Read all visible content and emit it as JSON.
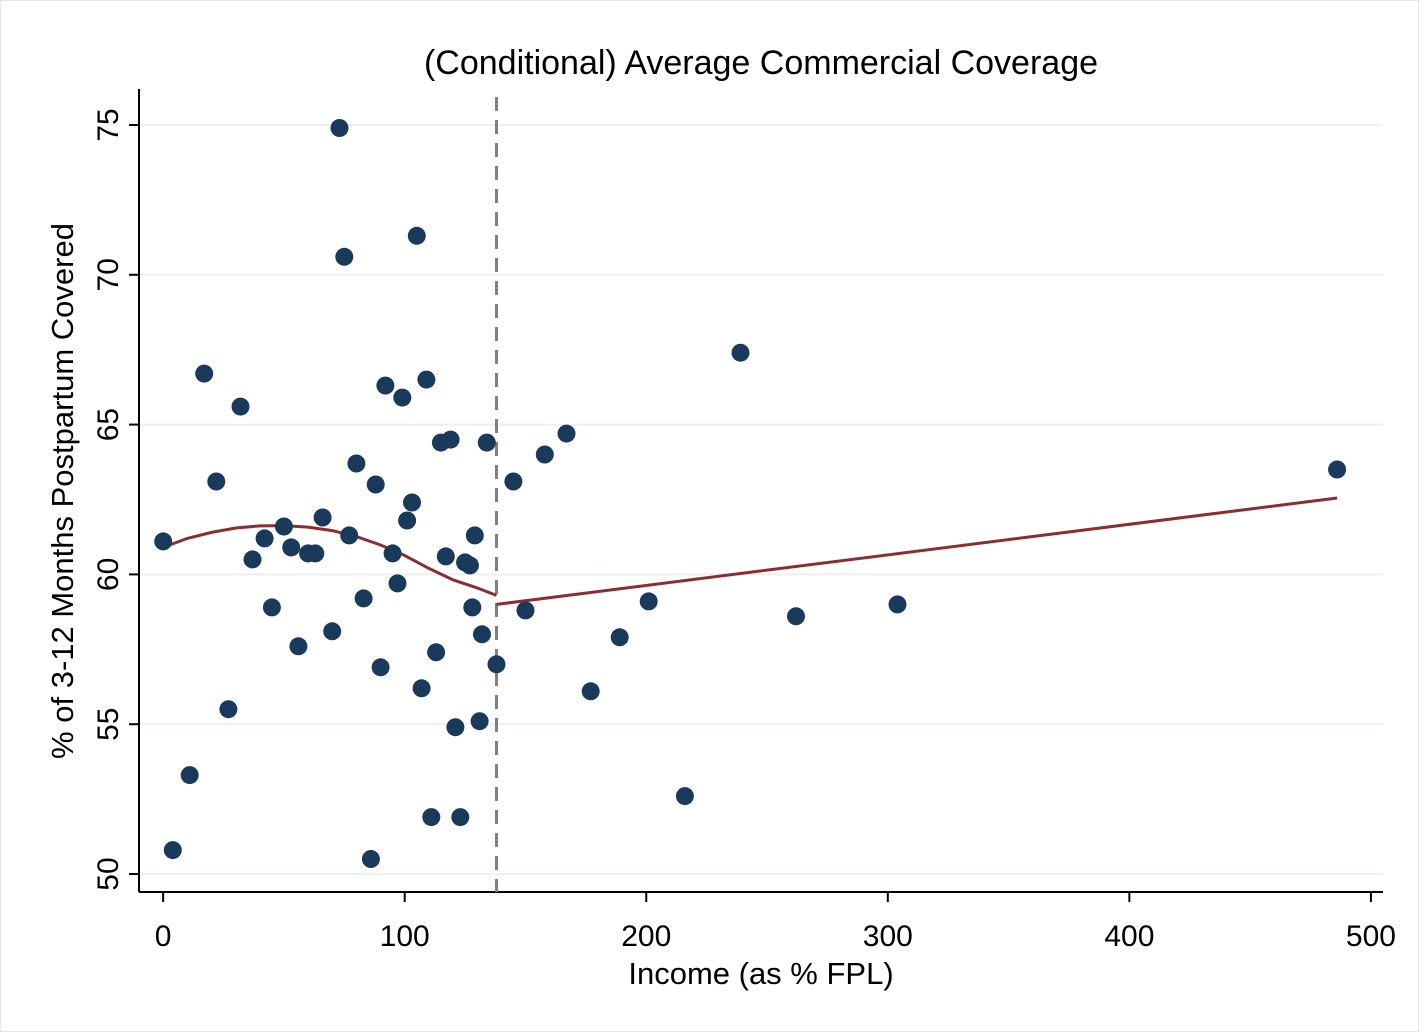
{
  "chart_data": {
    "type": "scatter",
    "title": "(Conditional) Average Commercial Coverage",
    "xlabel": "Income (as % FPL)",
    "ylabel": "% of 3-12 Months Postpartum Covered",
    "xlim": [
      -10,
      505
    ],
    "ylim": [
      49.4,
      76.2
    ],
    "x_ticks": [
      0,
      100,
      200,
      300,
      400,
      500
    ],
    "y_ticks": [
      50,
      55,
      60,
      65,
      70,
      75
    ],
    "grid": true,
    "legend": "none",
    "cutoff_x": 138,
    "colors": {
      "points": "#1a3a5c",
      "fit": "#8b2e33",
      "grid": "#eaf0f3",
      "cutoff": "#808080"
    },
    "series": [
      {
        "type": "scatter",
        "points": [
          [
            0,
            61.1
          ],
          [
            4,
            50.8
          ],
          [
            11,
            53.3
          ],
          [
            17,
            66.7
          ],
          [
            22,
            63.1
          ],
          [
            27,
            55.5
          ],
          [
            32,
            65.6
          ],
          [
            37,
            60.5
          ],
          [
            42,
            61.2
          ],
          [
            45,
            58.9
          ],
          [
            50,
            61.6
          ],
          [
            53,
            60.9
          ],
          [
            56,
            57.6
          ],
          [
            60,
            60.7
          ],
          [
            63,
            60.7
          ],
          [
            66,
            61.9
          ],
          [
            70,
            58.1
          ],
          [
            73,
            74.9
          ],
          [
            75,
            70.6
          ],
          [
            77,
            61.3
          ],
          [
            80,
            63.7
          ],
          [
            83,
            59.2
          ],
          [
            86,
            50.5
          ],
          [
            88,
            63.0
          ],
          [
            90,
            56.9
          ],
          [
            92,
            66.3
          ],
          [
            95,
            60.7
          ],
          [
            97,
            59.7
          ],
          [
            99,
            65.9
          ],
          [
            101,
            61.8
          ],
          [
            103,
            62.4
          ],
          [
            105,
            71.3
          ],
          [
            107,
            56.2
          ],
          [
            109,
            66.5
          ],
          [
            111,
            51.9
          ],
          [
            113,
            57.4
          ],
          [
            115,
            64.4
          ],
          [
            117,
            60.6
          ],
          [
            119,
            64.5
          ],
          [
            121,
            54.9
          ],
          [
            123,
            51.9
          ],
          [
            125,
            60.4
          ],
          [
            127,
            60.3
          ],
          [
            128,
            58.9
          ],
          [
            129,
            61.3
          ],
          [
            131,
            55.1
          ],
          [
            132,
            58.0
          ],
          [
            134,
            64.4
          ],
          [
            138,
            57.0
          ],
          [
            145,
            63.1
          ],
          [
            150,
            58.8
          ],
          [
            158,
            64.0
          ],
          [
            167,
            64.7
          ],
          [
            177,
            56.1
          ],
          [
            189,
            57.9
          ],
          [
            201,
            59.1
          ],
          [
            216,
            52.6
          ],
          [
            239,
            67.4
          ],
          [
            262,
            58.6
          ],
          [
            304,
            59.0
          ],
          [
            486,
            63.5
          ]
        ]
      },
      {
        "type": "line",
        "name": "fit-below-cutoff",
        "points": [
          [
            0,
            60.9
          ],
          [
            10,
            61.2
          ],
          [
            20,
            61.4
          ],
          [
            30,
            61.55
          ],
          [
            40,
            61.62
          ],
          [
            50,
            61.63
          ],
          [
            60,
            61.58
          ],
          [
            70,
            61.46
          ],
          [
            80,
            61.26
          ],
          [
            90,
            60.98
          ],
          [
            100,
            60.63
          ],
          [
            110,
            60.2
          ],
          [
            120,
            59.82
          ],
          [
            130,
            59.55
          ],
          [
            138,
            59.3
          ]
        ]
      },
      {
        "type": "line",
        "name": "fit-above-cutoff",
        "points": [
          [
            138,
            59.0
          ],
          [
            486,
            62.55
          ]
        ]
      }
    ]
  }
}
